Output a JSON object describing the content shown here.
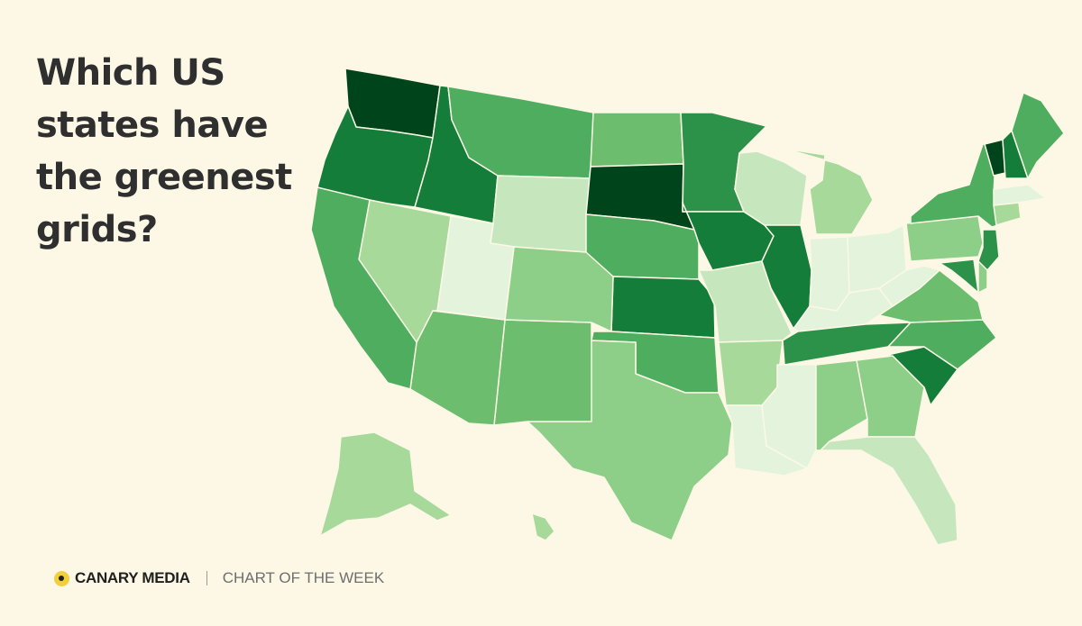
{
  "title": "Which US states have the greenest grids?",
  "footer": {
    "brand": "CANARY MEDIA",
    "series": "CHART OF THE WEEK"
  },
  "color_scale": {
    "0": "#e3f3dc",
    "1": "#c6e7bd",
    "2": "#a6d99a",
    "3": "#8dce88",
    "4": "#6cbe6e",
    "5": "#4ead5e",
    "6": "#2d9249",
    "7": "#157d3a",
    "8": "#00441b"
  },
  "chart_data": {
    "type": "choropleth",
    "title": "Which US states have the greenest grids?",
    "legend": "none",
    "states": [
      {
        "id": "WA",
        "shade": 8
      },
      {
        "id": "OR",
        "shade": 7
      },
      {
        "id": "ID",
        "shade": 7
      },
      {
        "id": "MT",
        "shade": 5
      },
      {
        "id": "WY",
        "shade": 1
      },
      {
        "id": "ND",
        "shade": 4
      },
      {
        "id": "SD",
        "shade": 8
      },
      {
        "id": "NE",
        "shade": 5
      },
      {
        "id": "KS",
        "shade": 7
      },
      {
        "id": "OK",
        "shade": 5
      },
      {
        "id": "TX",
        "shade": 3
      },
      {
        "id": "NM",
        "shade": 4
      },
      {
        "id": "AZ",
        "shade": 4
      },
      {
        "id": "CO",
        "shade": 3
      },
      {
        "id": "UT",
        "shade": 0
      },
      {
        "id": "NV",
        "shade": 2
      },
      {
        "id": "CA",
        "shade": 5
      },
      {
        "id": "MN",
        "shade": 6
      },
      {
        "id": "IA",
        "shade": 7
      },
      {
        "id": "MO",
        "shade": 1
      },
      {
        "id": "AR",
        "shade": 2
      },
      {
        "id": "LA",
        "shade": 0
      },
      {
        "id": "WI",
        "shade": 1
      },
      {
        "id": "IL",
        "shade": 7
      },
      {
        "id": "MI",
        "shade": 2
      },
      {
        "id": "IN",
        "shade": 0
      },
      {
        "id": "OH",
        "shade": 0
      },
      {
        "id": "KY",
        "shade": 0
      },
      {
        "id": "TN",
        "shade": 6
      },
      {
        "id": "MS",
        "shade": 0
      },
      {
        "id": "AL",
        "shade": 3
      },
      {
        "id": "GA",
        "shade": 3
      },
      {
        "id": "FL",
        "shade": 1
      },
      {
        "id": "SC",
        "shade": 7
      },
      {
        "id": "NC",
        "shade": 5
      },
      {
        "id": "VA",
        "shade": 4
      },
      {
        "id": "WV",
        "shade": 0
      },
      {
        "id": "PA",
        "shade": 3
      },
      {
        "id": "NY",
        "shade": 5
      },
      {
        "id": "VT",
        "shade": 8
      },
      {
        "id": "NH",
        "shade": 7
      },
      {
        "id": "ME",
        "shade": 5
      },
      {
        "id": "MA",
        "shade": 0
      },
      {
        "id": "CT",
        "shade": 2
      },
      {
        "id": "NJ",
        "shade": 6
      },
      {
        "id": "MD",
        "shade": 6
      },
      {
        "id": "DE",
        "shade": 3
      },
      {
        "id": "AK",
        "shade": 2
      },
      {
        "id": "HI",
        "shade": 2
      }
    ]
  }
}
